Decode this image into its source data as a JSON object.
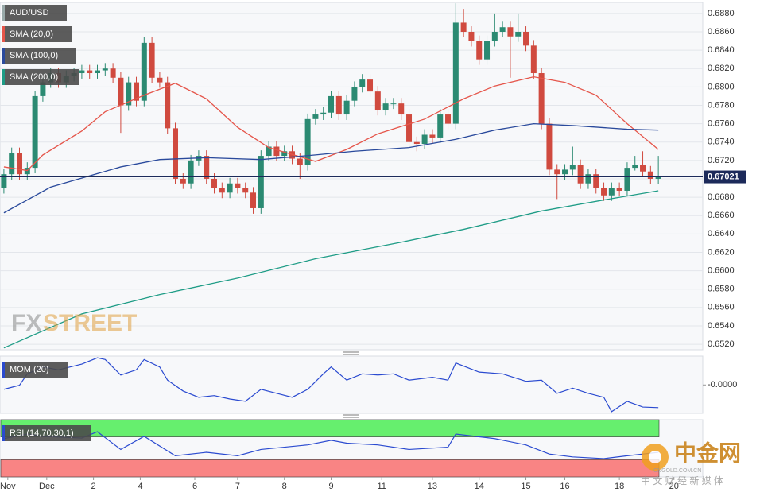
{
  "chart_data": [
    {
      "type": "candlestick",
      "name": "AUD/USD",
      "up_color": "#2b8a72",
      "down_color": "#d04a3f",
      "xlim": [
        -0.5,
        89.7
      ],
      "ylim": [
        0.6514,
        0.6892
      ],
      "yticks": [
        {
          "value": 0.652,
          "label": "0.6520"
        },
        {
          "value": 0.654,
          "label": "0.6540"
        },
        {
          "value": 0.656,
          "label": "0.6560"
        },
        {
          "value": 0.658,
          "label": "0.6580"
        },
        {
          "value": 0.66,
          "label": "0.6600"
        },
        {
          "value": 0.662,
          "label": "0.6620"
        },
        {
          "value": 0.664,
          "label": "0.6640"
        },
        {
          "value": 0.666,
          "label": "0.6660"
        },
        {
          "value": 0.668,
          "label": "0.6680"
        },
        {
          "value": 0.67,
          "label": "0.6700"
        },
        {
          "value": 0.672,
          "label": "0.6720"
        },
        {
          "value": 0.674,
          "label": "0.6740"
        },
        {
          "value": 0.676,
          "label": "0.6760"
        },
        {
          "value": 0.678,
          "label": "0.6780"
        },
        {
          "value": 0.68,
          "label": "0.6800"
        },
        {
          "value": 0.682,
          "label": "0.6820"
        },
        {
          "value": 0.684,
          "label": "0.6840"
        },
        {
          "value": 0.686,
          "label": "0.6860"
        },
        {
          "value": 0.688,
          "label": "0.6880"
        }
      ],
      "grid": true,
      "last_price": 0.67021,
      "last_price_color": "#1c2a5a",
      "open": [
        0.669,
        0.6705,
        0.6728,
        0.6705,
        0.6712,
        0.679,
        0.6805,
        0.6815,
        0.6805,
        0.6812,
        0.6815,
        0.6818,
        0.6815,
        0.6818,
        0.682,
        0.681,
        0.678,
        0.6805,
        0.6785,
        0.6848,
        0.681,
        0.6805,
        0.6755,
        0.67,
        0.6695,
        0.672,
        0.6725,
        0.67,
        0.669,
        0.6685,
        0.6695,
        0.669,
        0.6685,
        0.6668,
        0.6725,
        0.6735,
        0.6725,
        0.673,
        0.6722,
        0.6715,
        0.6765,
        0.677,
        0.6772,
        0.679,
        0.677,
        0.6785,
        0.68,
        0.6808,
        0.6795,
        0.6775,
        0.6782,
        0.6782,
        0.677,
        0.674,
        0.6738,
        0.6748,
        0.6745,
        0.677,
        0.676,
        0.687,
        0.686,
        0.685,
        0.683,
        0.685,
        0.686,
        0.6865,
        0.6855,
        0.686,
        0.6845,
        0.6815,
        0.676,
        0.671,
        0.6705,
        0.671,
        0.6715,
        0.6695,
        0.6705,
        0.669,
        0.6682,
        0.669,
        0.6687,
        0.6712,
        0.6715,
        0.6708,
        0.67
      ],
      "high": [
        0.6711,
        0.6734,
        0.6734,
        0.6718,
        0.6796,
        0.6811,
        0.6821,
        0.6821,
        0.6818,
        0.6821,
        0.6824,
        0.6824,
        0.6824,
        0.6826,
        0.6826,
        0.6816,
        0.6811,
        0.6811,
        0.6854,
        0.6854,
        0.6816,
        0.6811,
        0.6761,
        0.6706,
        0.6726,
        0.6731,
        0.6731,
        0.6706,
        0.6696,
        0.6701,
        0.6701,
        0.6696,
        0.6691,
        0.6731,
        0.6741,
        0.6741,
        0.6736,
        0.6736,
        0.6728,
        0.6771,
        0.6776,
        0.6778,
        0.6796,
        0.6796,
        0.6791,
        0.6806,
        0.6814,
        0.6814,
        0.6801,
        0.6788,
        0.6788,
        0.6788,
        0.6776,
        0.6746,
        0.6754,
        0.6754,
        0.6776,
        0.6776,
        0.6891,
        0.6885,
        0.6866,
        0.6856,
        0.6856,
        0.688,
        0.6871,
        0.6871,
        0.688,
        0.6866,
        0.6851,
        0.6821,
        0.6766,
        0.6716,
        0.6716,
        0.6735,
        0.6721,
        0.6711,
        0.6711,
        0.6696,
        0.6696,
        0.6696,
        0.6718,
        0.6725,
        0.673,
        0.6714,
        0.6725
      ],
      "low": [
        0.6684,
        0.6699,
        0.6699,
        0.6699,
        0.6706,
        0.6784,
        0.6799,
        0.6799,
        0.6799,
        0.6806,
        0.6809,
        0.6809,
        0.6809,
        0.6812,
        0.6804,
        0.675,
        0.6774,
        0.6779,
        0.6779,
        0.6804,
        0.6799,
        0.6749,
        0.6694,
        0.6689,
        0.6689,
        0.6714,
        0.6694,
        0.6684,
        0.6679,
        0.6679,
        0.6684,
        0.6679,
        0.6662,
        0.6662,
        0.6719,
        0.6719,
        0.6719,
        0.6716,
        0.67,
        0.6709,
        0.6759,
        0.6764,
        0.6766,
        0.6764,
        0.6764,
        0.6779,
        0.6794,
        0.6789,
        0.6769,
        0.6769,
        0.6776,
        0.6764,
        0.6734,
        0.673,
        0.6732,
        0.6739,
        0.6739,
        0.6754,
        0.6754,
        0.6854,
        0.6844,
        0.6824,
        0.6824,
        0.6844,
        0.6854,
        0.681,
        0.6849,
        0.6839,
        0.6809,
        0.6754,
        0.6704,
        0.6678,
        0.6699,
        0.6704,
        0.6689,
        0.6689,
        0.6684,
        0.6676,
        0.6676,
        0.6681,
        0.6681,
        0.6709,
        0.6702,
        0.6694,
        0.6694
      ],
      "close": [
        0.6705,
        0.6728,
        0.6705,
        0.6712,
        0.679,
        0.6805,
        0.6815,
        0.6805,
        0.6812,
        0.6815,
        0.6818,
        0.6815,
        0.6818,
        0.682,
        0.681,
        0.678,
        0.6805,
        0.6785,
        0.6848,
        0.681,
        0.6805,
        0.6755,
        0.67,
        0.6695,
        0.672,
        0.6725,
        0.67,
        0.669,
        0.6685,
        0.6695,
        0.669,
        0.6685,
        0.6668,
        0.6725,
        0.6735,
        0.6725,
        0.673,
        0.6722,
        0.6715,
        0.6765,
        0.677,
        0.6772,
        0.679,
        0.677,
        0.6785,
        0.68,
        0.6808,
        0.6795,
        0.6775,
        0.6782,
        0.6782,
        0.677,
        0.674,
        0.6738,
        0.6748,
        0.6745,
        0.677,
        0.676,
        0.687,
        0.686,
        0.685,
        0.683,
        0.685,
        0.686,
        0.6865,
        0.6855,
        0.686,
        0.6845,
        0.6815,
        0.676,
        0.671,
        0.6705,
        0.671,
        0.6715,
        0.6695,
        0.6705,
        0.669,
        0.6682,
        0.669,
        0.6687,
        0.6712,
        0.6715,
        0.6708,
        0.67,
        0.6702
      ],
      "overlays": [
        {
          "name": "SMA (20,0)",
          "color": "#e5554a",
          "x": [
            0,
            3,
            5,
            10,
            13,
            18,
            22,
            26,
            30,
            34,
            40,
            44,
            48,
            54,
            59,
            63,
            68,
            72,
            76,
            80,
            84
          ],
          "values": [
            0.6713,
            0.6709,
            0.6726,
            0.6752,
            0.6773,
            0.6791,
            0.6804,
            0.6787,
            0.6756,
            0.6734,
            0.6719,
            0.6732,
            0.6749,
            0.6765,
            0.6787,
            0.6801,
            0.6811,
            0.6805,
            0.6791,
            0.676,
            0.6732
          ]
        },
        {
          "name": "SMA (100,0)",
          "color": "#2a4a9c",
          "x": [
            0,
            6,
            15,
            20,
            26,
            33,
            40,
            45,
            52,
            58,
            63,
            68,
            73,
            80,
            84
          ],
          "values": [
            0.6663,
            0.6691,
            0.6713,
            0.6721,
            0.6723,
            0.6721,
            0.6726,
            0.673,
            0.6734,
            0.6743,
            0.6753,
            0.676,
            0.6758,
            0.6754,
            0.6753
          ]
        },
        {
          "name": "SMA (200,0)",
          "color": "#1e9c86",
          "x": [
            0,
            10,
            20,
            30,
            40,
            51,
            59,
            69,
            77,
            84
          ],
          "values": [
            0.6516,
            0.6553,
            0.6574,
            0.6592,
            0.6613,
            0.6631,
            0.6645,
            0.6665,
            0.6677,
            0.6687
          ]
        }
      ]
    },
    {
      "type": "line",
      "name": "MOM (20)",
      "color": "#2a4ad0",
      "xlim": [
        -0.5,
        89.7
      ],
      "ylim": [
        -0.005,
        0.005
      ],
      "yticks": [
        {
          "value": -4e-05,
          "label": "-0.0000"
        }
      ],
      "x": [
        0,
        2,
        3,
        5,
        7,
        10,
        12,
        13,
        15,
        17,
        18,
        20,
        21,
        23,
        25,
        27,
        29,
        31,
        33,
        35,
        37,
        39,
        41,
        42,
        44,
        46,
        48,
        50,
        52,
        55,
        57,
        58,
        61,
        64,
        67,
        69,
        71,
        73,
        75,
        77,
        78,
        80,
        82,
        84
      ],
      "values": [
        -0.0008,
        -0.0001,
        0.0019,
        0.0031,
        0.0026,
        0.0036,
        0.0047,
        0.0044,
        0.0017,
        0.0026,
        0.0044,
        0.0031,
        0.0008,
        -0.0011,
        -0.0022,
        -0.0019,
        -0.0025,
        -0.0029,
        -0.0008,
        -0.0015,
        -0.0022,
        -0.0008,
        0.0019,
        0.0031,
        0.0008,
        0.0019,
        0.0017,
        0.0019,
        0.0008,
        0.0013,
        0.0008,
        0.0038,
        0.0022,
        0.0019,
        0.0006,
        0.0008,
        -0.0015,
        -0.0006,
        -0.0015,
        -0.0022,
        -0.0047,
        -0.0029,
        -0.0039,
        -0.004
      ]
    },
    {
      "type": "line",
      "name": "RSI (14,70,30,1)",
      "color": "#2a4ad0",
      "xlim": [
        -0.5,
        89.7
      ],
      "ylim": [
        0,
        100
      ],
      "bands": [
        {
          "from": 70,
          "to": 100,
          "color": "#66ef6e"
        },
        {
          "from": 0,
          "to": 30,
          "color": "#f98484"
        }
      ],
      "x": [
        0,
        3,
        5,
        10,
        12,
        15,
        18,
        22,
        26,
        30,
        33,
        39,
        42,
        44,
        48,
        52,
        57,
        58,
        63,
        67,
        70,
        73,
        77,
        80,
        84
      ],
      "values": [
        67,
        75,
        71,
        68,
        79,
        48,
        71,
        37,
        43,
        37,
        48,
        56,
        64,
        59,
        56,
        48,
        52,
        75,
        67,
        56,
        40,
        35,
        32,
        37,
        43
      ],
      "xticks": [
        {
          "value": 0.5,
          "label": "Nov"
        },
        {
          "value": 5.5,
          "label": "Dec"
        },
        {
          "value": 11.5,
          "label": "2"
        },
        {
          "value": 17.5,
          "label": "4"
        },
        {
          "value": 24.5,
          "label": "6"
        },
        {
          "value": 30,
          "label": "7"
        },
        {
          "value": 36,
          "label": "8"
        },
        {
          "value": 42,
          "label": "9"
        },
        {
          "value": 48.5,
          "label": "11"
        },
        {
          "value": 55,
          "label": "13"
        },
        {
          "value": 61,
          "label": "14"
        },
        {
          "value": 67,
          "label": "15"
        },
        {
          "value": 72,
          "label": "16"
        },
        {
          "value": 79,
          "label": "18"
        },
        {
          "value": 86,
          "label": "20"
        }
      ]
    }
  ],
  "branding": {
    "fx": "FX",
    "street": "STREET",
    "cn_logo": "中金网",
    "cn_site": "CNGOLD.COM.CN",
    "cn_tagline": "中 文 财 经 新 媒 体"
  }
}
